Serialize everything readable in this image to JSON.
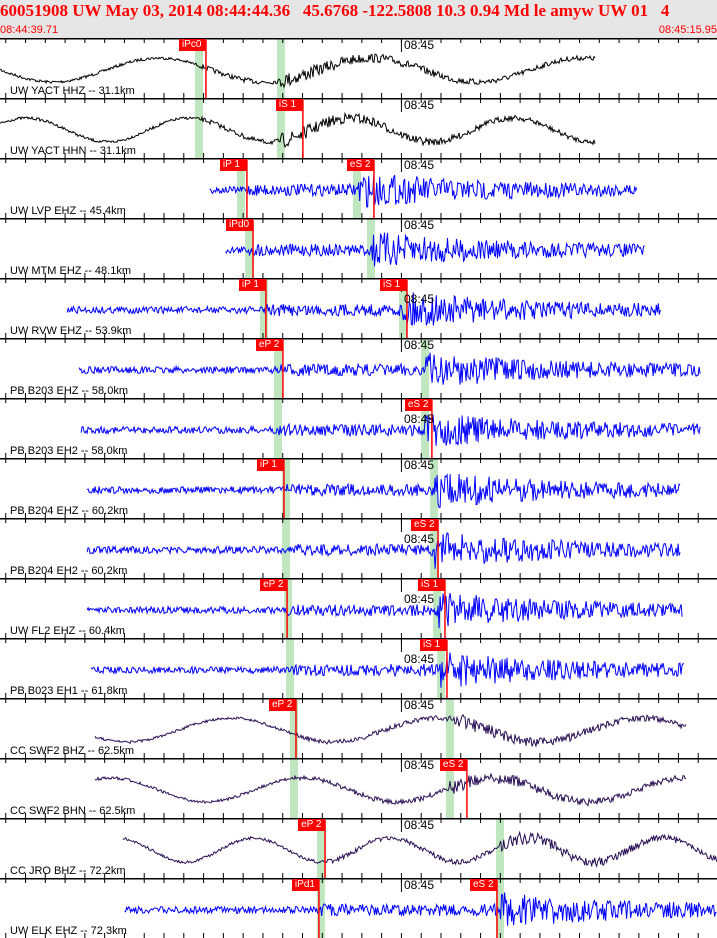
{
  "header": {
    "title": "60051908 UW May 03, 2014 08:44:44.36   45.6768 -122.5808 10.3 0.94 Md le amyw UW 01   4",
    "start_time": "08:44:39.71",
    "end_time": "08:45:15.95"
  },
  "window_seconds": 36.24,
  "minute_mark": {
    "label": "08:45",
    "t": 20.29
  },
  "colors": {
    "pick": "#ff0000",
    "theory": "#bfe6bf",
    "blue": "#0000ff",
    "black": "#000000",
    "purple": "#2a0f55"
  },
  "traces": [
    {
      "label": "UW YACT HHZ -- 31.1km",
      "color": "#000000",
      "start": 0,
      "end": 30.1,
      "p_th": 10.06,
      "s_th": 14.2,
      "picks": [
        {
          "label": "iPc0",
          "t": 10.41
        }
      ]
    },
    {
      "label": "UW YACT HHN -- 31.1km",
      "color": "#000000",
      "start": 0,
      "end": 30.1,
      "p_th": 10.06,
      "s_th": 14.2,
      "picks": [
        {
          "label": "iS 1",
          "t": 15.31
        }
      ]
    },
    {
      "label": "UW LVP EHZ -- 45.4km",
      "color": "#0000ff",
      "start": 10.6,
      "end": 32.2,
      "p_th": 12.18,
      "s_th": 18.04,
      "picks": [
        {
          "label": "iP 1",
          "t": 12.48
        },
        {
          "label": "eS 2",
          "t": 18.9
        }
      ]
    },
    {
      "label": "UW MTM EHZ -- 48.1km",
      "color": "#0000ff",
      "start": 11.4,
      "end": 32.6,
      "p_th": 12.59,
      "s_th": 18.75,
      "picks": [
        {
          "label": "iPd0",
          "t": 12.79
        }
      ]
    },
    {
      "label": "UW RVW EHZ -- 53.9km",
      "color": "#0000ff",
      "start": 3.4,
      "end": 33.4,
      "p_th": 13.34,
      "s_th": 20.37,
      "picks": [
        {
          "label": "iP 1",
          "t": 13.44
        },
        {
          "label": "iS 1",
          "t": 20.57
        }
      ]
    },
    {
      "label": "PB B203 EHZ -- 58.0km",
      "color": "#0000ff",
      "start": 4.0,
      "end": 35.4,
      "p_th": 14.05,
      "s_th": 21.48,
      "picks": [
        {
          "label": "eP 2",
          "t": 14.3
        }
      ]
    },
    {
      "label": "PB B203 EH2 -- 58.0km",
      "color": "#0000ff",
      "start": 4.1,
      "end": 35.4,
      "p_th": 14.05,
      "s_th": 21.48,
      "picks": [
        {
          "label": "eS 2",
          "t": 21.83
        }
      ]
    },
    {
      "label": "PB B204 EHZ -- 60.2km",
      "color": "#0000ff",
      "start": 4.4,
      "end": 34.4,
      "p_th": 14.46,
      "s_th": 21.94,
      "picks": [
        {
          "label": "iP 1",
          "t": 14.35
        }
      ]
    },
    {
      "label": "PB B204 EH2 -- 60.2km",
      "color": "#0000ff",
      "start": 4.4,
      "end": 34.4,
      "p_th": 14.46,
      "s_th": 21.94,
      "picks": [
        {
          "label": "eS 2",
          "t": 22.14
        }
      ]
    },
    {
      "label": "UW FL2 EHZ -- 60.4km",
      "color": "#0000ff",
      "start": 4.4,
      "end": 34.5,
      "p_th": 14.56,
      "s_th": 22.09,
      "picks": [
        {
          "label": "eP 2",
          "t": 14.51
        },
        {
          "label": "iS 1",
          "t": 22.49
        }
      ]
    },
    {
      "label": "PB B023 EH1 -- 61.8km",
      "color": "#0000ff",
      "start": 4.6,
      "end": 34.6,
      "p_th": 14.66,
      "s_th": 22.29,
      "picks": [
        {
          "label": "iS 1",
          "t": 22.59
        }
      ]
    },
    {
      "label": "CC SWF2 BHZ -- 62.5km",
      "color": "#2a0f55",
      "start": 4.8,
      "end": 34.7,
      "p_th": 14.86,
      "s_th": 22.74,
      "picks": [
        {
          "label": "eP 2",
          "t": 14.96
        }
      ]
    },
    {
      "label": "CC SWF2 BHN -- 62.5km",
      "color": "#2a0f55",
      "start": 4.8,
      "end": 34.7,
      "p_th": 14.86,
      "s_th": 22.74,
      "picks": [
        {
          "label": "eS 2",
          "t": 23.6
        }
      ]
    },
    {
      "label": "CC JRO BHZ -- 72.2km",
      "color": "#2a0f55",
      "start": 6.2,
      "end": 36.24,
      "p_th": 16.22,
      "s_th": 25.27,
      "picks": [
        {
          "label": "eP 2",
          "t": 16.43
        }
      ]
    },
    {
      "label": "UW ELK EHZ -- 72.3km",
      "color": "#0000ff",
      "start": 6.3,
      "end": 36.24,
      "p_th": 16.22,
      "s_th": 25.27,
      "picks": [
        {
          "label": "iPd1",
          "t": 16.12
        },
        {
          "label": "eS 2",
          "t": 25.12
        }
      ]
    }
  ]
}
